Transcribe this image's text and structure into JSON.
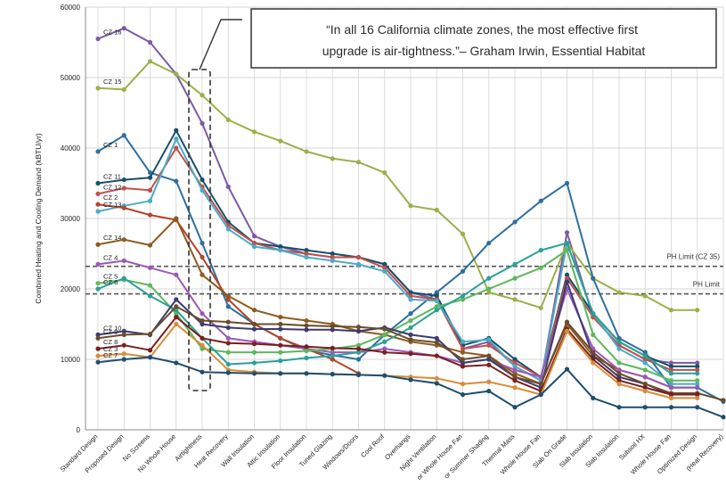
{
  "chart_data": {
    "type": "line",
    "title": "",
    "xlabel": "",
    "ylabel": "Combined Heating and Cooling Demand (kBTU/yr)",
    "ylim": [
      0,
      60000
    ],
    "yticks": [
      "0",
      "10000",
      "20000",
      "30000",
      "40000",
      "50000",
      "60000"
    ],
    "categories": [
      "Standard Design",
      "Proposed Design",
      "No Screens",
      "No Whole House",
      "Airtightness",
      "Heat Recovery",
      "Wall Insulation",
      "Attic Insulation",
      "Floor Insulation",
      "Tuned Glazing",
      "Windows/Doors",
      "Cool Roof",
      "Overhangs",
      "Night Ventilation",
      "or Whole House Fan",
      "or Summer Shading",
      "Thermal Mass",
      "Whole House Fan",
      "Slab On Grade",
      "Slab Insulation",
      "Slab Insulation",
      "Subsoil HX",
      "Whole House Fan",
      "Optimized Design",
      "(Heat Recovery)"
    ],
    "grid": true,
    "annotation": "“In all 16 California climate zones, the most effective first upgrade is air-tightness.”– Graham Irwin, Essential Habitat",
    "ph_limits": [
      {
        "label": "PH Limit (CZ 35)",
        "value": 23200
      },
      {
        "label": "PH Limit",
        "value": 19300
      }
    ],
    "series": [
      {
        "name": "CZ 16",
        "color": "#7b5aa6",
        "values": [
          55500,
          57000,
          55000,
          50500,
          43500,
          34500,
          27500,
          26000,
          25000,
          24500,
          24500,
          23500,
          19500,
          18500,
          11500,
          12500,
          9000,
          7000,
          28000,
          16000,
          12000,
          10000,
          9500,
          9500,
          null
        ]
      },
      {
        "name": "CZ 15",
        "color": "#9ab04a",
        "values": [
          48500,
          48300,
          52300,
          50500,
          47500,
          44000,
          42300,
          41000,
          39500,
          38500,
          38000,
          36500,
          31800,
          31200,
          27800,
          19500,
          18500,
          17300,
          26500,
          21500,
          19500,
          19000,
          17000,
          17000,
          null
        ]
      },
      {
        "name": "CZ 1",
        "color": "#2e6f9e",
        "values": [
          39500,
          41800,
          36500,
          35300,
          26500,
          17500,
          15000,
          13000,
          11300,
          10600,
          10000,
          13500,
          16500,
          19500,
          22500,
          26500,
          29500,
          32500,
          35000,
          21500,
          13000,
          11000,
          6000,
          6000,
          4000
        ]
      },
      {
        "name": "CZ 11",
        "color": "#174f6a",
        "values": [
          35000,
          35500,
          35800,
          42500,
          35500,
          29500,
          26500,
          26000,
          25500,
          25000,
          24500,
          23500,
          19500,
          19000,
          12000,
          13000,
          10000,
          7500,
          22000,
          16500,
          12500,
          10500,
          9000,
          9000,
          null
        ]
      },
      {
        "name": "CZ 12",
        "color": "#c0504d",
        "values": [
          33500,
          34300,
          34000,
          40000,
          34500,
          29000,
          26500,
          25500,
          25000,
          24500,
          24500,
          23000,
          19000,
          18500,
          11500,
          12000,
          9500,
          7500,
          21500,
          16000,
          12000,
          10000,
          8500,
          8500,
          null
        ]
      },
      {
        "name": "CZ 13",
        "color": "#4bacc6",
        "values": [
          31000,
          31800,
          32500,
          41300,
          34000,
          28500,
          26000,
          25500,
          24500,
          24000,
          23500,
          22500,
          18500,
          18300,
          12500,
          12800,
          9000,
          7000,
          26500,
          16500,
          11500,
          9500,
          6500,
          6500,
          null
        ]
      },
      {
        "name": "CZ 2",
        "color": "#b2452c",
        "values": [
          32000,
          31500,
          30500,
          29800,
          24500,
          18500,
          15000,
          13000,
          11500,
          10000,
          8000,
          null,
          null,
          null,
          null,
          null,
          null,
          null,
          null,
          null,
          null,
          null,
          null,
          null,
          null
        ]
      },
      {
        "name": "CZ 14",
        "color": "#8e5a1f",
        "values": [
          26300,
          27000,
          26200,
          30000,
          22000,
          19000,
          17000,
          16000,
          15500,
          15000,
          14000,
          13500,
          12500,
          12000,
          11000,
          10500,
          8000,
          6500,
          15000,
          10500,
          8500,
          7500,
          6000,
          6000,
          null
        ]
      },
      {
        "name": "CZ 4",
        "color": "#9b59b6",
        "values": [
          23500,
          24000,
          23000,
          22000,
          16500,
          13000,
          12500,
          12000,
          11500,
          11000,
          11000,
          11500,
          11000,
          10500,
          9500,
          10000,
          8500,
          7500,
          20000,
          11500,
          8500,
          7500,
          6000,
          6000,
          null
        ]
      },
      {
        "name": "CZ 5",
        "color": "#5cb85c",
        "values": [
          20800,
          21300,
          20500,
          16500,
          11500,
          11000,
          11000,
          11000,
          11200,
          11500,
          12000,
          13500,
          15500,
          17500,
          18500,
          20000,
          21500,
          23000,
          25500,
          13500,
          9500,
          8500,
          7000,
          7000,
          null
        ]
      },
      {
        "name": "CZ 6",
        "color": "#2aa198",
        "values": [
          20000,
          21500,
          19000,
          17000,
          13000,
          9300,
          9500,
          9800,
          10200,
          10500,
          11000,
          12500,
          14500,
          17000,
          19000,
          21500,
          23500,
          25500,
          26500,
          16500,
          12500,
          10500,
          8000,
          8000,
          null
        ]
      },
      {
        "name": "CZ 10",
        "color": "#3c3c6e",
        "values": [
          13500,
          14000,
          13500,
          18500,
          15000,
          14500,
          14300,
          14300,
          14200,
          14200,
          14000,
          14500,
          13500,
          13000,
          9500,
          10000,
          7500,
          6000,
          21000,
          10500,
          7500,
          6500,
          5000,
          5000,
          null
        ]
      },
      {
        "name": "CZ 9",
        "color": "#6b4c2a",
        "values": [
          13000,
          13500,
          13600,
          17500,
          15500,
          15300,
          15000,
          15000,
          14800,
          14700,
          14600,
          14300,
          12800,
          12400,
          10000,
          10500,
          7500,
          6500,
          15300,
          11000,
          8000,
          6500,
          5200,
          5200,
          4200
        ]
      },
      {
        "name": "CZ 8",
        "color": "#7a1f1f",
        "values": [
          11500,
          12000,
          11300,
          16000,
          13000,
          12300,
          12200,
          12000,
          11800,
          11600,
          11500,
          11000,
          10800,
          10500,
          9000,
          9200,
          7000,
          5500,
          14300,
          10000,
          7000,
          6000,
          5000,
          5000,
          null
        ]
      },
      {
        "name": "CZ 3",
        "color": "#d98c3a",
        "values": [
          10500,
          10800,
          10300,
          15000,
          12000,
          8500,
          8200,
          8000,
          8000,
          7900,
          7800,
          7700,
          7500,
          7300,
          6500,
          6800,
          6000,
          5000,
          14000,
          9500,
          6500,
          5500,
          4500,
          4500,
          null
        ]
      },
      {
        "name": "CZ 7",
        "color": "#1f4e6e",
        "values": [
          9600,
          10000,
          10300,
          9500,
          8200,
          8100,
          8000,
          8000,
          8000,
          7900,
          7800,
          7700,
          7100,
          6600,
          5000,
          5500,
          3200,
          5000,
          8600,
          4500,
          3200,
          3200,
          3200,
          3200,
          1800
        ]
      }
    ]
  }
}
